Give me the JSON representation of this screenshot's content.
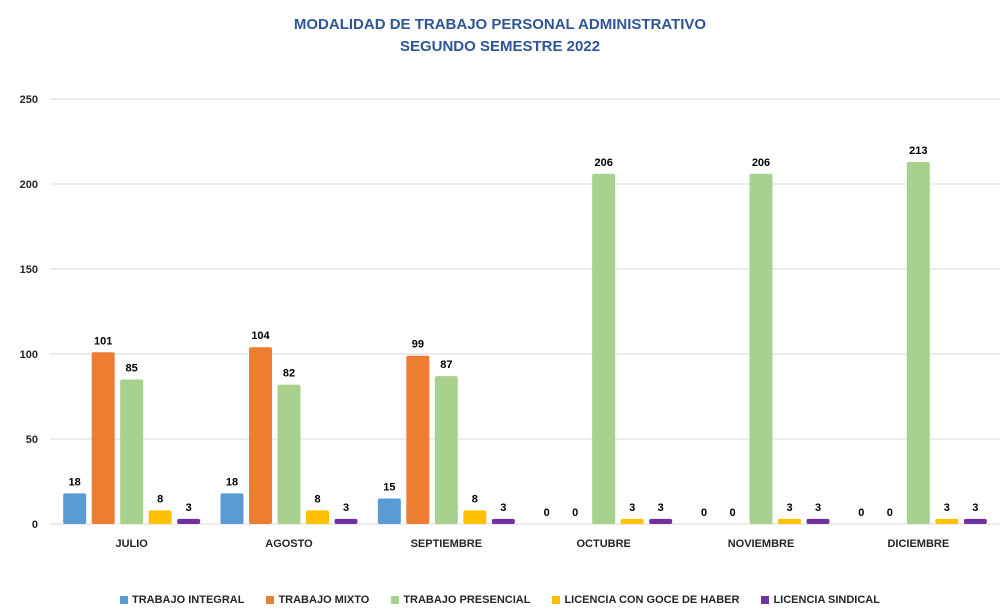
{
  "chart_data": {
    "type": "bar",
    "title_lines": [
      "MODALIDAD DE TRABAJO PERSONAL ADMINISTRATIVO",
      "SEGUNDO SEMESTRE 2022"
    ],
    "categories": [
      "JULIO",
      "AGOSTO",
      "SEPTIEMBRE",
      "OCTUBRE",
      "NOVIEMBRE",
      "DICIEMBRE"
    ],
    "series": [
      {
        "name": "TRABAJO INTEGRAL",
        "color": "#5b9bd5",
        "values": [
          18,
          18,
          15,
          0,
          0,
          0
        ]
      },
      {
        "name": "TRABAJO MIXTO",
        "color": "#ed7d31",
        "values": [
          101,
          104,
          99,
          0,
          0,
          0
        ]
      },
      {
        "name": "TRABAJO PRESENCIAL",
        "color": "#a9d18e",
        "values": [
          85,
          82,
          87,
          206,
          206,
          213
        ]
      },
      {
        "name": "LICENCIA CON GOCE DE HABER",
        "color": "#ffc000",
        "values": [
          8,
          8,
          8,
          3,
          3,
          3
        ]
      },
      {
        "name": "LICENCIA SINDICAL",
        "color": "#7030a0",
        "values": [
          3,
          3,
          3,
          3,
          3,
          3
        ]
      }
    ],
    "y_ticks": [
      0,
      50,
      100,
      150,
      200,
      250
    ],
    "ylim": [
      0,
      250
    ],
    "grid": true,
    "legend_position": "bottom",
    "data_labels": true
  }
}
